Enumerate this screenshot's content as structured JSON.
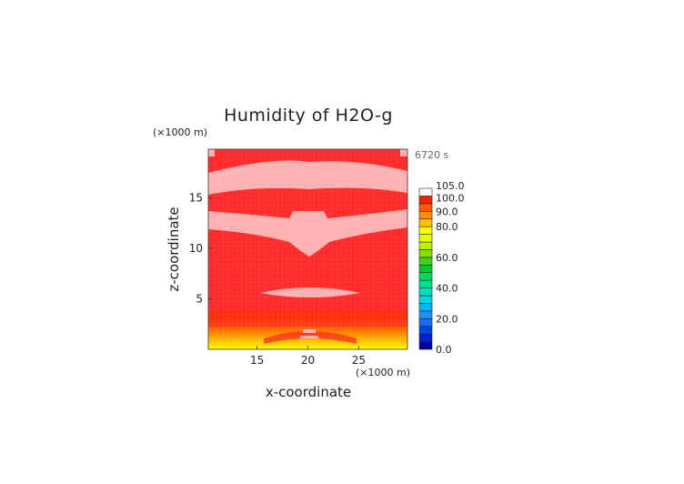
{
  "chart_data": {
    "type": "heatmap",
    "title": "Humidity of H2O-g",
    "xlabel": "x-coordinate",
    "ylabel": "z-coordinate",
    "x_unit": "(×1000 m)",
    "y_unit": "(×1000 m)",
    "time_label": "6720 s",
    "xlim": [
      10.2,
      29.8
    ],
    "ylim": [
      0,
      19.8
    ],
    "x_ticks": [
      15,
      20,
      25
    ],
    "y_ticks": [
      5,
      10,
      15
    ],
    "colorbar": {
      "levels": [
        0,
        5,
        10,
        15,
        20,
        25,
        30,
        35,
        40,
        45,
        50,
        55,
        60,
        65,
        70,
        75,
        80,
        85,
        90,
        95,
        100,
        105
      ],
      "labels": [
        "0.0",
        "20.0",
        "40.0",
        "60.0",
        "80.0",
        "90.0",
        "100.0",
        "105.0"
      ],
      "colors": [
        "#0000a0",
        "#0022c8",
        "#0044e6",
        "#1a6cff",
        "#2090ff",
        "#00b4ff",
        "#00d2f0",
        "#00e0c0",
        "#00e090",
        "#00d860",
        "#00c830",
        "#40d020",
        "#80e000",
        "#b8f000",
        "#e8ff00",
        "#ffff00",
        "#ffc000",
        "#ff9000",
        "#ff5a00",
        "#ff2000",
        "#ffffff"
      ]
    },
    "background_value": 96,
    "regions": [
      {
        "value": 102,
        "note": "supersaturated (pink) bands"
      },
      {
        "value": 80,
        "note": "near-surface gradient"
      }
    ]
  }
}
